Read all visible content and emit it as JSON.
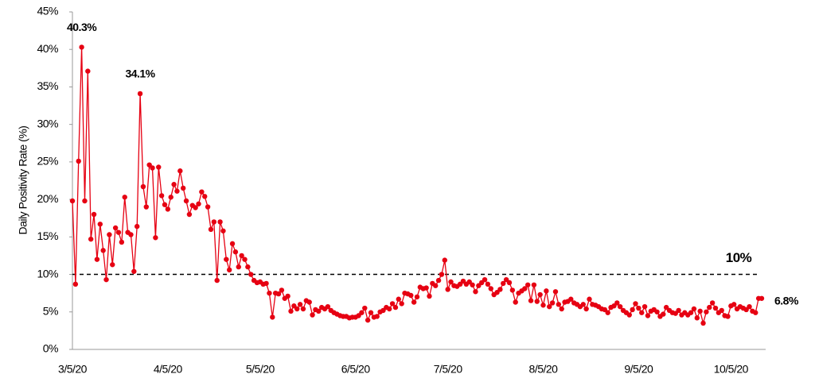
{
  "chart_data": {
    "type": "line",
    "y_label": "Daily Positivity Rate (%)",
    "color": "#e60012",
    "x": [
      "3/5/20",
      "3/6/20",
      "3/7/20",
      "3/8/20",
      "3/9/20",
      "3/10/20",
      "3/11/20",
      "3/12/20",
      "3/13/20",
      "3/14/20",
      "3/15/20",
      "3/16/20",
      "3/17/20",
      "3/18/20",
      "3/19/20",
      "3/20/20",
      "3/21/20",
      "3/22/20",
      "3/23/20",
      "3/24/20",
      "3/25/20",
      "3/26/20",
      "3/27/20",
      "3/28/20",
      "3/29/20",
      "3/30/20",
      "3/31/20",
      "4/1/20",
      "4/2/20",
      "4/3/20",
      "4/4/20",
      "4/5/20",
      "4/6/20",
      "4/7/20",
      "4/8/20",
      "4/9/20",
      "4/10/20",
      "4/11/20",
      "4/12/20",
      "4/13/20",
      "4/14/20",
      "4/15/20",
      "4/16/20",
      "4/17/20",
      "4/18/20",
      "4/19/20",
      "4/20/20",
      "4/21/20",
      "4/22/20",
      "4/23/20",
      "4/24/20",
      "4/25/20",
      "4/26/20",
      "4/27/20",
      "4/28/20",
      "4/29/20",
      "4/30/20",
      "5/1/20",
      "5/2/20",
      "5/3/20",
      "5/4/20",
      "5/5/20",
      "5/6/20",
      "5/7/20",
      "5/8/20",
      "5/9/20",
      "5/10/20",
      "5/11/20",
      "5/12/20",
      "5/13/20",
      "5/14/20",
      "5/15/20",
      "5/16/20",
      "5/17/20",
      "5/18/20",
      "5/19/20",
      "5/20/20",
      "5/21/20",
      "5/22/20",
      "5/23/20",
      "5/24/20",
      "5/25/20",
      "5/26/20",
      "5/27/20",
      "5/28/20",
      "5/29/20",
      "5/30/20",
      "5/31/20",
      "6/1/20",
      "6/2/20",
      "6/3/20",
      "6/4/20",
      "6/5/20",
      "6/6/20",
      "6/7/20",
      "6/8/20",
      "6/9/20",
      "6/10/20",
      "6/11/20",
      "6/12/20",
      "6/13/20",
      "6/14/20",
      "6/15/20",
      "6/16/20",
      "6/17/20",
      "6/18/20",
      "6/19/20",
      "6/20/20",
      "6/21/20",
      "6/22/20",
      "6/23/20",
      "6/24/20",
      "6/25/20",
      "6/26/20",
      "6/27/20",
      "6/28/20",
      "6/29/20",
      "6/30/20",
      "7/1/20",
      "7/2/20",
      "7/3/20",
      "7/4/20",
      "7/5/20",
      "7/6/20",
      "7/7/20",
      "7/8/20",
      "7/9/20",
      "7/10/20",
      "7/11/20",
      "7/12/20",
      "7/13/20",
      "7/14/20",
      "7/15/20",
      "7/16/20",
      "7/17/20",
      "7/18/20",
      "7/19/20",
      "7/20/20",
      "7/21/20",
      "7/22/20",
      "7/23/20",
      "7/24/20",
      "7/25/20",
      "7/26/20",
      "7/27/20",
      "7/28/20",
      "7/29/20",
      "7/30/20",
      "7/31/20",
      "8/1/20",
      "8/2/20",
      "8/3/20",
      "8/4/20",
      "8/5/20",
      "8/6/20",
      "8/7/20",
      "8/8/20",
      "8/9/20",
      "8/10/20",
      "8/11/20",
      "8/12/20",
      "8/13/20",
      "8/14/20",
      "8/15/20",
      "8/16/20",
      "8/17/20",
      "8/18/20",
      "8/19/20",
      "8/20/20",
      "8/21/20",
      "8/22/20",
      "8/23/20",
      "8/24/20",
      "8/25/20",
      "8/26/20",
      "8/27/20",
      "8/28/20",
      "8/29/20",
      "8/30/20",
      "8/31/20",
      "9/1/20",
      "9/2/20",
      "9/3/20",
      "9/4/20",
      "9/5/20",
      "9/6/20",
      "9/7/20",
      "9/8/20",
      "9/9/20",
      "9/10/20",
      "9/11/20",
      "9/12/20",
      "9/13/20",
      "9/14/20",
      "9/15/20",
      "9/16/20",
      "9/17/20",
      "9/18/20",
      "9/19/20",
      "9/20/20",
      "9/21/20",
      "9/22/20",
      "9/23/20",
      "9/24/20",
      "9/25/20",
      "9/26/20",
      "9/27/20",
      "9/28/20",
      "9/29/20",
      "9/30/20",
      "10/1/20",
      "10/2/20",
      "10/3/20",
      "10/4/20",
      "10/5/20",
      "10/6/20",
      "10/7/20",
      "10/8/20",
      "10/9/20",
      "10/10/20",
      "10/11/20",
      "10/12/20",
      "10/13/20",
      "10/14/20",
      "10/15/20"
    ],
    "values": [
      19.8,
      8.7,
      25.1,
      40.3,
      19.8,
      37.1,
      14.7,
      18.0,
      12.0,
      16.7,
      13.2,
      9.3,
      15.3,
      11.3,
      16.2,
      15.6,
      14.3,
      20.3,
      15.6,
      15.3,
      10.4,
      16.4,
      34.1,
      21.7,
      19.0,
      24.6,
      24.2,
      14.9,
      24.3,
      20.5,
      19.3,
      18.7,
      20.3,
      22.0,
      21.1,
      23.8,
      21.5,
      19.8,
      18.0,
      19.2,
      18.9,
      19.4,
      21.0,
      20.4,
      19.0,
      16.0,
      17.0,
      9.2,
      17.0,
      15.8,
      12.0,
      10.6,
      14.1,
      13.0,
      11.0,
      12.5,
      12.0,
      11.0,
      10.0,
      9.2,
      8.9,
      9.0,
      8.7,
      8.8,
      7.5,
      4.3,
      7.5,
      7.4,
      7.9,
      6.8,
      7.1,
      5.1,
      5.8,
      5.4,
      6.0,
      5.4,
      6.5,
      6.3,
      4.6,
      5.3,
      5.1,
      5.6,
      5.4,
      5.7,
      5.2,
      4.9,
      4.7,
      4.5,
      4.4,
      4.4,
      4.2,
      4.3,
      4.3,
      4.5,
      4.9,
      5.5,
      3.9,
      4.9,
      4.3,
      4.4,
      5.0,
      5.2,
      5.6,
      5.4,
      6.1,
      5.6,
      6.7,
      6.1,
      7.5,
      7.4,
      7.2,
      6.3,
      7.0,
      8.3,
      8.1,
      8.2,
      7.1,
      8.8,
      8.5,
      9.2,
      10.0,
      11.9,
      8.0,
      9.0,
      8.5,
      8.4,
      8.7,
      9.1,
      8.7,
      9.0,
      8.6,
      7.7,
      8.5,
      8.9,
      9.3,
      8.7,
      8.1,
      7.3,
      7.6,
      8.0,
      8.8,
      9.3,
      8.9,
      7.9,
      6.3,
      7.5,
      7.8,
      8.1,
      8.6,
      6.5,
      8.6,
      6.4,
      7.3,
      5.9,
      7.8,
      5.7,
      6.2,
      7.7,
      6.0,
      5.4,
      6.3,
      6.4,
      6.7,
      6.2,
      6.0,
      5.7,
      6.0,
      5.4,
      6.7,
      6.0,
      5.9,
      5.7,
      5.4,
      5.3,
      4.9,
      5.6,
      5.8,
      6.2,
      5.7,
      5.2,
      4.9,
      4.6,
      5.3,
      6.1,
      5.5,
      4.9,
      5.7,
      4.5,
      5.1,
      5.3,
      5.0,
      4.4,
      4.7,
      5.6,
      5.2,
      4.9,
      4.8,
      5.2,
      4.6,
      4.9,
      4.6,
      4.9,
      5.4,
      4.2,
      5.1,
      3.5,
      5.0,
      5.6,
      6.2,
      5.5,
      4.9,
      5.2,
      4.5,
      4.4,
      5.8,
      6.0,
      5.4,
      5.7,
      5.5,
      5.3,
      5.7,
      5.1,
      4.9,
      6.8,
      6.8
    ],
    "xticks": [
      "3/5/20",
      "4/5/20",
      "5/5/20",
      "6/5/20",
      "7/5/20",
      "8/5/20",
      "9/5/20",
      "10/5/20"
    ],
    "ylim": [
      0,
      45
    ],
    "yticks": [
      {
        "value": 0,
        "label": "0%"
      },
      {
        "value": 5,
        "label": "5%"
      },
      {
        "value": 10,
        "label": "10%"
      },
      {
        "value": 15,
        "label": "15%"
      },
      {
        "value": 20,
        "label": "20%"
      },
      {
        "value": 25,
        "label": "25%"
      },
      {
        "value": 30,
        "label": "30%"
      },
      {
        "value": 35,
        "label": "35%"
      },
      {
        "value": 40,
        "label": "40%"
      },
      {
        "value": 45,
        "label": "45%"
      }
    ],
    "reference_line": {
      "value": 10,
      "label": "10%"
    },
    "annotations": [
      {
        "x": "3/8/20",
        "value": 40.3,
        "label": "40.3%"
      },
      {
        "x": "3/27/20",
        "value": 34.1,
        "label": "34.1%"
      },
      {
        "x": "10/15/20",
        "value": 6.8,
        "label": "6.8%"
      }
    ]
  }
}
